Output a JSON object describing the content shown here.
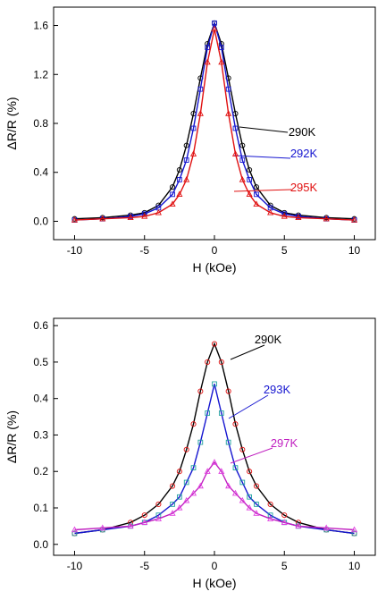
{
  "chart_data": [
    {
      "type": "line",
      "xlabel": "H (kOe)",
      "ylabel": "ΔR/R (%)",
      "xlim": [
        -11.5,
        11.5
      ],
      "ylim": [
        -0.15,
        1.75
      ],
      "xticks": [
        -10,
        -5,
        0,
        5,
        10
      ],
      "yticks": [
        0.0,
        0.4,
        0.8,
        1.2,
        1.6
      ],
      "ytick_labels": [
        "0.0",
        "0.4",
        "0.8",
        "1.2",
        "1.6"
      ],
      "grid": false,
      "series": [
        {
          "name": "290K",
          "color": "#000000",
          "marker": "circle",
          "x": [
            -10,
            -8,
            -6,
            -5,
            -4,
            -3,
            -2.5,
            -2,
            -1.5,
            -1,
            -0.5,
            0,
            0.5,
            1,
            1.5,
            2,
            2.5,
            3,
            4,
            5,
            6,
            8,
            10
          ],
          "y": [
            0.02,
            0.03,
            0.05,
            0.07,
            0.13,
            0.28,
            0.42,
            0.62,
            0.88,
            1.17,
            1.45,
            1.62,
            1.45,
            1.17,
            0.88,
            0.62,
            0.42,
            0.28,
            0.13,
            0.07,
            0.05,
            0.03,
            0.02
          ]
        },
        {
          "name": "292K",
          "color": "#1515d0",
          "marker": "square",
          "x": [
            -10,
            -8,
            -6,
            -5,
            -4,
            -3,
            -2.5,
            -2,
            -1.5,
            -1,
            -0.5,
            0,
            0.5,
            1,
            1.5,
            2,
            2.5,
            3,
            4,
            5,
            6,
            8,
            10
          ],
          "y": [
            0.01,
            0.02,
            0.04,
            0.06,
            0.11,
            0.22,
            0.34,
            0.5,
            0.76,
            1.08,
            1.42,
            1.62,
            1.42,
            1.08,
            0.76,
            0.5,
            0.34,
            0.22,
            0.11,
            0.06,
            0.04,
            0.02,
            0.01
          ]
        },
        {
          "name": "295K",
          "color": "#e01010",
          "marker": "triangle",
          "x": [
            -10,
            -8,
            -6,
            -5,
            -4,
            -3,
            -2.5,
            -2,
            -1.5,
            -1,
            -0.5,
            0,
            0.5,
            1,
            1.5,
            2,
            2.5,
            3,
            4,
            5,
            6,
            8,
            10
          ],
          "y": [
            0.01,
            0.02,
            0.03,
            0.04,
            0.07,
            0.14,
            0.22,
            0.34,
            0.55,
            0.88,
            1.3,
            1.57,
            1.3,
            0.88,
            0.55,
            0.34,
            0.22,
            0.14,
            0.07,
            0.04,
            0.03,
            0.02,
            0.01
          ]
        }
      ]
    },
    {
      "type": "line",
      "xlabel": "H (kOe)",
      "ylabel": "ΔR/R (%)",
      "xlim": [
        -11.5,
        11.5
      ],
      "ylim": [
        -0.03,
        0.62
      ],
      "xticks": [
        -10,
        -5,
        0,
        5,
        10
      ],
      "yticks": [
        0.0,
        0.1,
        0.2,
        0.3,
        0.4,
        0.5,
        0.6
      ],
      "ytick_labels": [
        "0.0",
        "0.1",
        "0.2",
        "0.3",
        "0.4",
        "0.5",
        "0.6"
      ],
      "grid": false,
      "series": [
        {
          "name": "290K",
          "color": "#000000",
          "marker_color": "#e01010",
          "marker": "circle",
          "x": [
            -10,
            -8,
            -6,
            -5,
            -4,
            -3,
            -2.5,
            -2,
            -1.5,
            -1,
            -0.5,
            0,
            0.5,
            1,
            1.5,
            2,
            2.5,
            3,
            4,
            5,
            6,
            8,
            10
          ],
          "y": [
            0.03,
            0.04,
            0.06,
            0.08,
            0.11,
            0.16,
            0.2,
            0.26,
            0.33,
            0.42,
            0.5,
            0.55,
            0.5,
            0.42,
            0.33,
            0.26,
            0.2,
            0.16,
            0.11,
            0.08,
            0.06,
            0.04,
            0.03
          ]
        },
        {
          "name": "293K",
          "color": "#1515d0",
          "marker_color": "#20a0a0",
          "marker": "square",
          "x": [
            -10,
            -8,
            -6,
            -5,
            -4,
            -3,
            -2.5,
            -2,
            -1.5,
            -1,
            -0.5,
            0,
            0.5,
            1,
            1.5,
            2,
            2.5,
            3,
            4,
            5,
            6,
            8,
            10
          ],
          "y": [
            0.03,
            0.04,
            0.05,
            0.06,
            0.08,
            0.11,
            0.13,
            0.17,
            0.21,
            0.28,
            0.36,
            0.44,
            0.36,
            0.28,
            0.21,
            0.17,
            0.13,
            0.11,
            0.08,
            0.06,
            0.05,
            0.04,
            0.03
          ]
        },
        {
          "name": "297K",
          "color": "#c020c0",
          "marker_color": "#e040e0",
          "marker": "triangle",
          "x": [
            -10,
            -8,
            -6,
            -5,
            -4,
            -3,
            -2.5,
            -2,
            -1.5,
            -1,
            -0.5,
            0,
            0.5,
            1,
            1.5,
            2,
            2.5,
            3,
            4,
            5,
            6,
            8,
            10
          ],
          "y": [
            0.04,
            0.045,
            0.05,
            0.06,
            0.07,
            0.085,
            0.1,
            0.12,
            0.14,
            0.16,
            0.2,
            0.225,
            0.2,
            0.16,
            0.14,
            0.12,
            0.1,
            0.085,
            0.07,
            0.06,
            0.05,
            0.045,
            0.04
          ]
        }
      ]
    }
  ]
}
